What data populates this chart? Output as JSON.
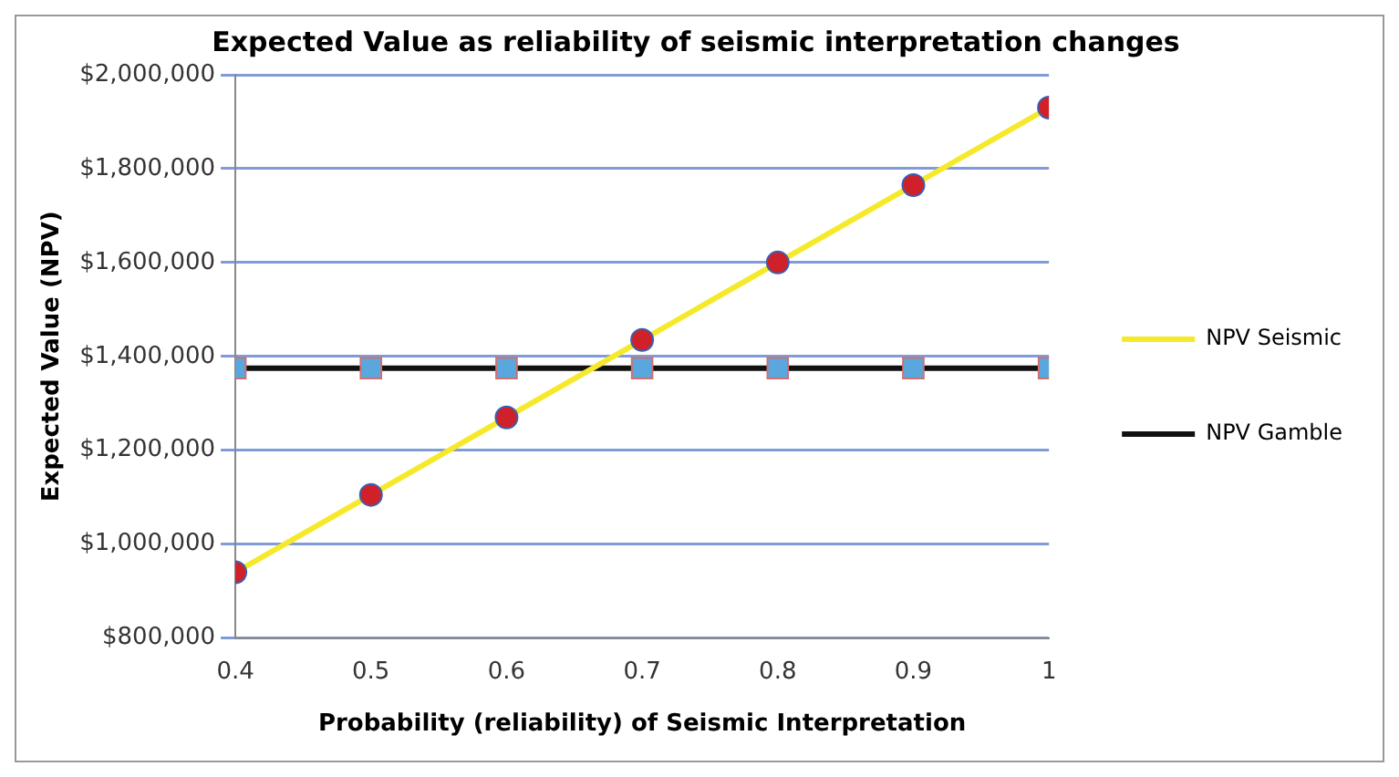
{
  "chart_data": {
    "type": "line",
    "title": "Expected Value as reliability of seismic interpretation changes",
    "xlabel": "Probability (reliability) of Seismic Interpretation",
    "ylabel": "Expected Value (NPV)",
    "x": [
      0.4,
      0.5,
      0.6,
      0.7,
      0.8,
      0.9,
      1
    ],
    "xlim": [
      0.4,
      1
    ],
    "xticks": [
      {
        "value": 0.4,
        "label": "0.4"
      },
      {
        "value": 0.5,
        "label": "0.5"
      },
      {
        "value": 0.6,
        "label": "0.6"
      },
      {
        "value": 0.7,
        "label": "0.7"
      },
      {
        "value": 0.8,
        "label": "0.8"
      },
      {
        "value": 0.9,
        "label": "0.9"
      },
      {
        "value": 1,
        "label": "1"
      }
    ],
    "ylim": [
      800000,
      2000000
    ],
    "yticks": [
      {
        "value": 800000,
        "label": "$800,000"
      },
      {
        "value": 1000000,
        "label": "$1,000,000"
      },
      {
        "value": 1200000,
        "label": "$1,200,000"
      },
      {
        "value": 1400000,
        "label": "$1,400,000"
      },
      {
        "value": 1600000,
        "label": "$1,600,000"
      },
      {
        "value": 1800000,
        "label": "$1,800,000"
      },
      {
        "value": 2000000,
        "label": "$2,000,000"
      }
    ],
    "grid": "y",
    "legend": "right",
    "series": [
      {
        "name": "NPV Seismic",
        "color": "#f5e92a",
        "marker": "circle",
        "values": [
          940000,
          1105000,
          1270000,
          1435000,
          1600000,
          1765000,
          1930000
        ]
      },
      {
        "name": "NPV Gamble",
        "color": "#111111",
        "marker": "square",
        "values": [
          1375000,
          1375000,
          1375000,
          1375000,
          1375000,
          1375000,
          1375000
        ]
      }
    ]
  }
}
